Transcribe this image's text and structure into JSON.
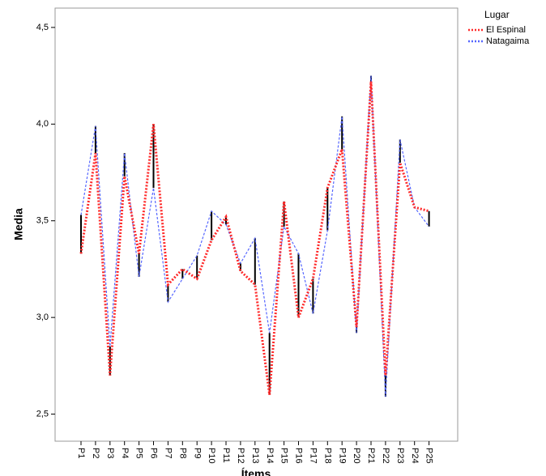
{
  "chart_data": {
    "type": "line",
    "x_label": "Ítems",
    "y_label": "Media",
    "legend_title": "Lugar",
    "categories": [
      "P1",
      "P2",
      "P3",
      "P4",
      "P5",
      "P6",
      "P7",
      "P8",
      "P9",
      "P10",
      "P11",
      "P12",
      "P13",
      "P14",
      "P15",
      "P16",
      "P17",
      "P18",
      "P19",
      "P20",
      "P21",
      "P22",
      "P23",
      "P24",
      "P25"
    ],
    "series": [
      {
        "name": "El Espinal",
        "color": "#ff2a2a",
        "values": [
          3.33,
          3.85,
          2.7,
          3.73,
          3.33,
          4.0,
          3.17,
          3.25,
          3.2,
          3.4,
          3.52,
          3.24,
          3.17,
          2.6,
          3.6,
          3.0,
          3.2,
          3.67,
          3.87,
          2.95,
          4.22,
          2.7,
          3.8,
          3.57,
          3.55
        ]
      },
      {
        "name": "Natagaima",
        "color": "#5566ff",
        "values": [
          3.53,
          3.99,
          2.85,
          3.85,
          3.21,
          3.67,
          3.08,
          3.2,
          3.32,
          3.55,
          3.48,
          3.28,
          3.41,
          2.92,
          3.47,
          3.33,
          3.02,
          3.45,
          4.04,
          2.92,
          4.25,
          2.59,
          3.92,
          3.57,
          3.47
        ]
      }
    ],
    "ylim": [
      2.36,
      4.6
    ],
    "yticks": [
      {
        "value": 2.5,
        "label": "2,5"
      },
      {
        "value": 3.0,
        "label": "3,0"
      },
      {
        "value": 3.5,
        "label": "3,5"
      },
      {
        "value": 4.0,
        "label": "4,0"
      },
      {
        "value": 4.5,
        "label": "4,5"
      }
    ],
    "legend": "outside-top-right",
    "high_low_lines": true
  }
}
